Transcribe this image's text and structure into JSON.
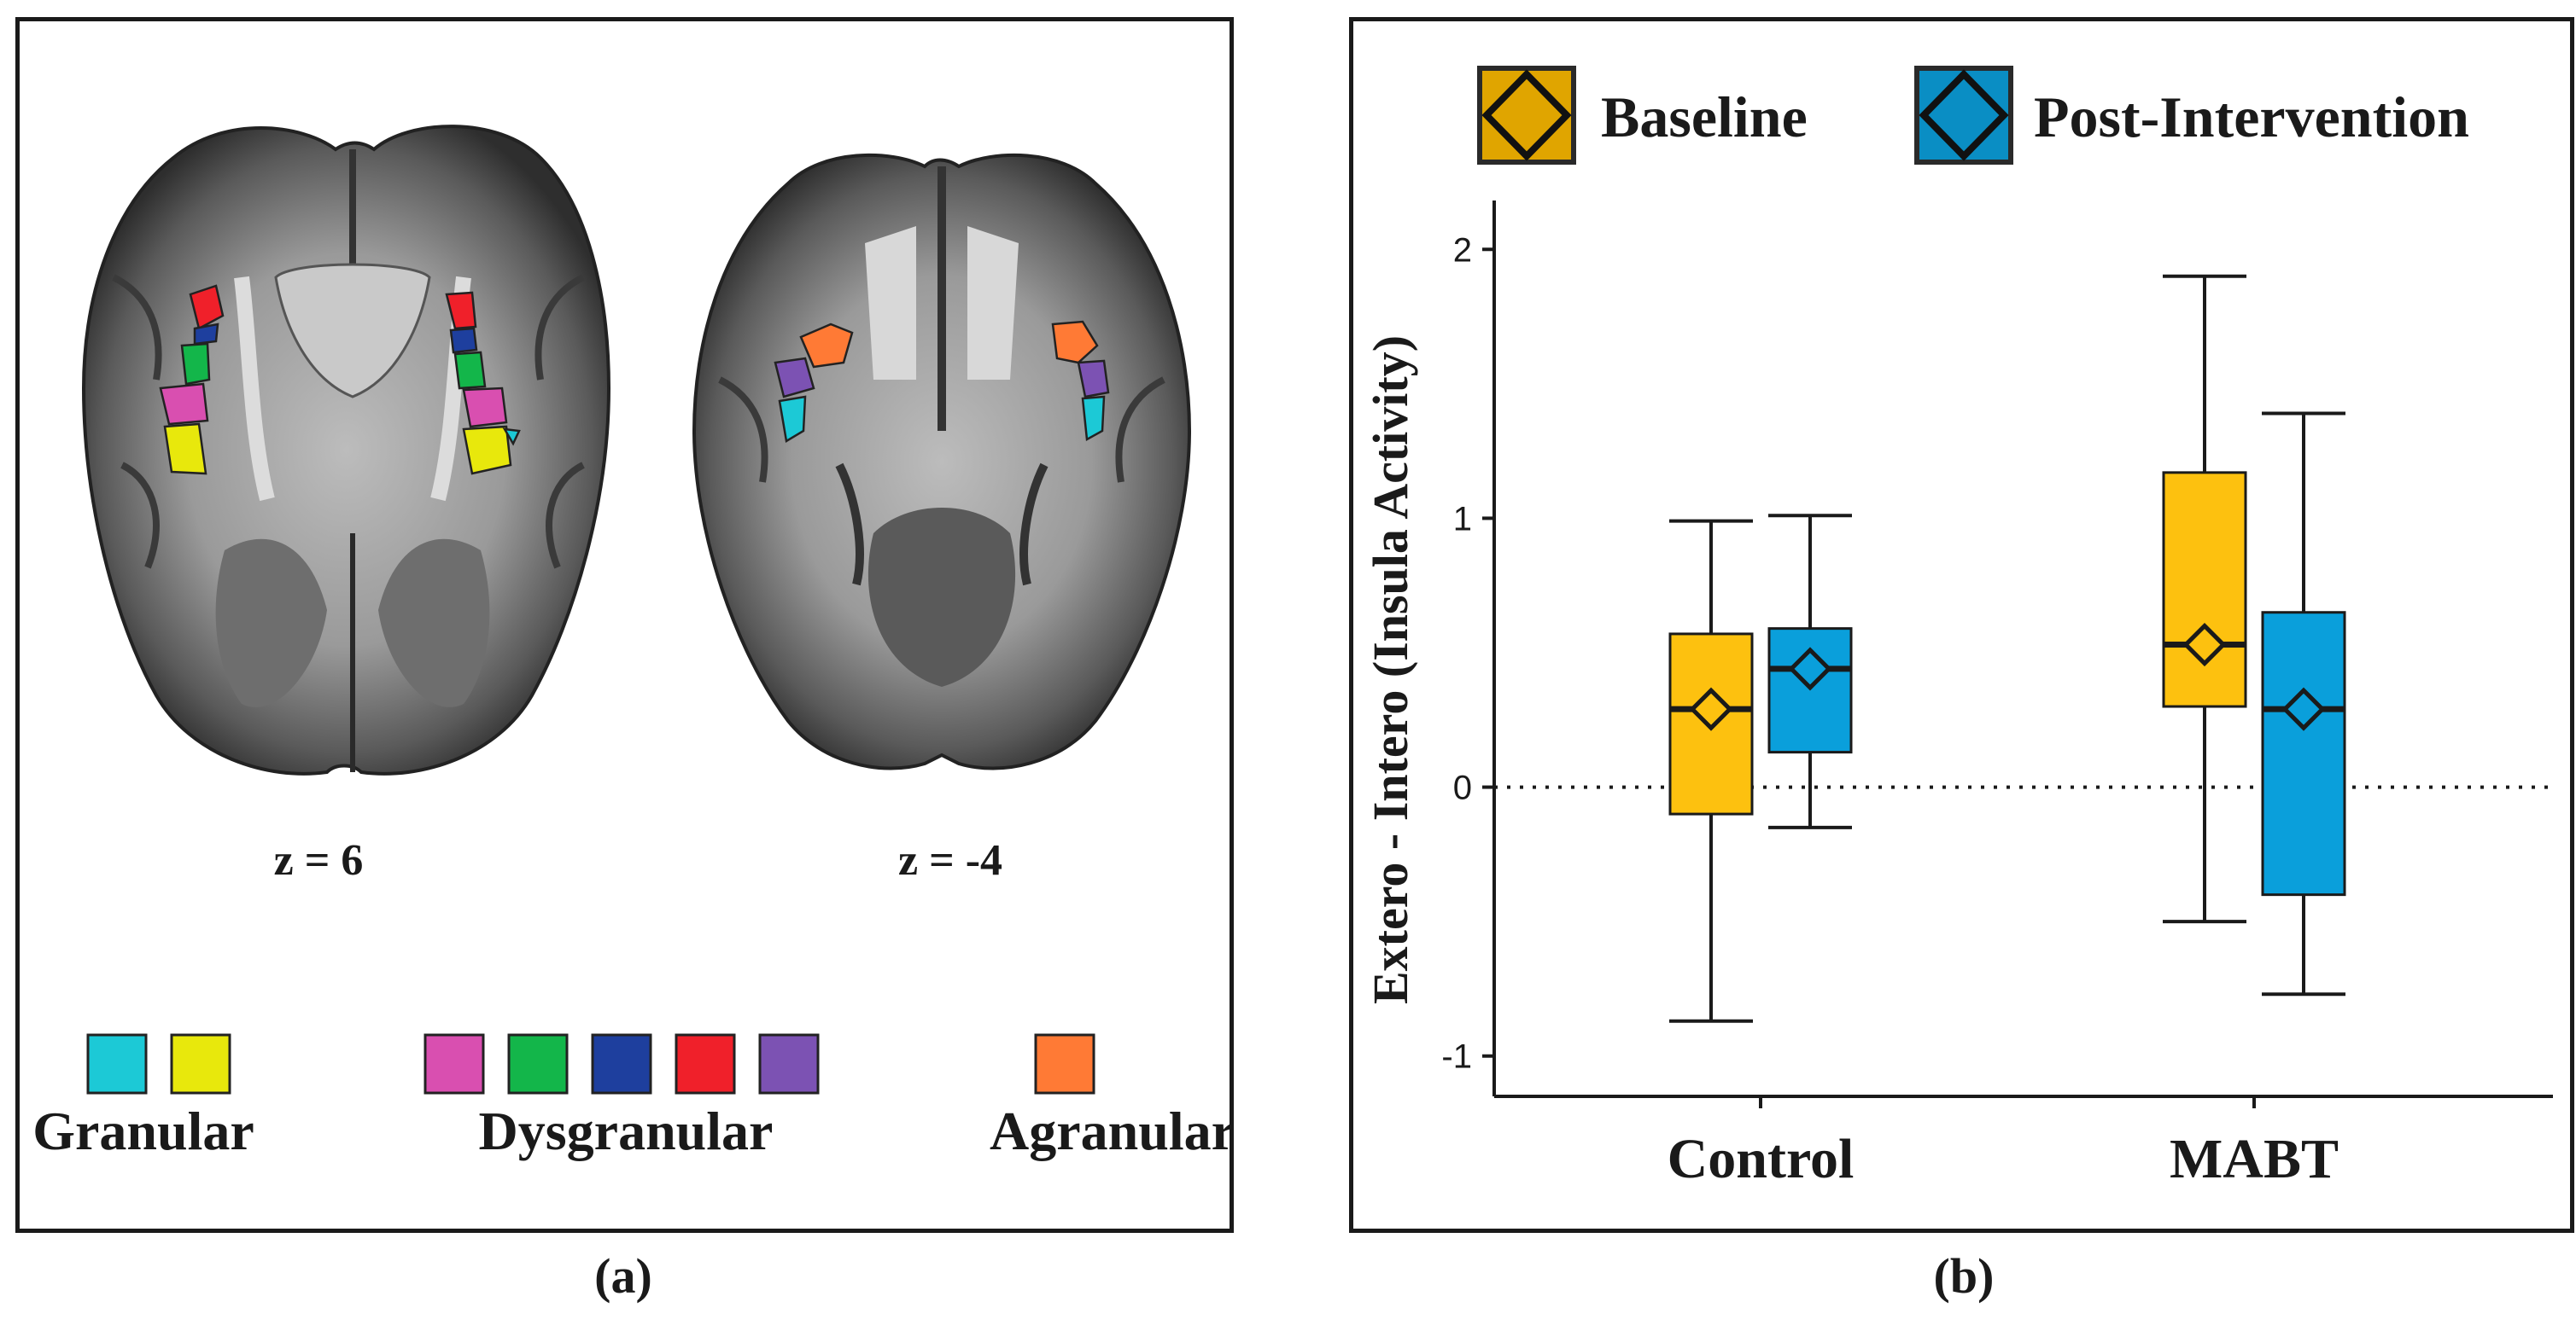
{
  "panel_a": {
    "caption": "(a)",
    "slices": [
      {
        "label": "z = 6"
      },
      {
        "label": "z = -4"
      }
    ],
    "legend": {
      "groups": [
        {
          "name": "Granular",
          "colors": [
            "#1cc9d6",
            "#e8e80c"
          ]
        },
        {
          "name": "Dysgranular",
          "colors": [
            "#d94fb0",
            "#13b64a",
            "#1e3f9e",
            "#f0202a",
            "#7c52b3"
          ]
        },
        {
          "name": "Agranular",
          "colors": [
            "#ff7a35"
          ]
        }
      ]
    }
  },
  "panel_b": {
    "caption": "(b)"
  },
  "chart_data": {
    "type": "box",
    "title": "",
    "xlabel": "",
    "ylabel": "Extero - Intero (Insula Activity)",
    "ylim": [
      -1.15,
      2.15
    ],
    "yticks": [
      -1,
      0,
      1,
      2
    ],
    "categories": [
      "Control",
      "MABT"
    ],
    "reference_line": {
      "y": 0,
      "style": "dotted"
    },
    "legend_position": "top",
    "series": [
      {
        "name": "Baseline",
        "color": "#fdc10f",
        "boxes": [
          {
            "category": "Control",
            "min": -0.87,
            "q1": -0.1,
            "median": 0.29,
            "q3": 0.57,
            "max": 0.99,
            "mean": 0.29
          },
          {
            "category": "MABT",
            "min": -0.5,
            "q1": 0.3,
            "median": 0.53,
            "q3": 1.17,
            "max": 1.9,
            "mean": 0.53
          }
        ]
      },
      {
        "name": "Post-Intervention",
        "color": "#0a9fdb",
        "boxes": [
          {
            "category": "Control",
            "min": -0.15,
            "q1": 0.13,
            "median": 0.44,
            "q3": 0.59,
            "max": 1.01,
            "mean": 0.44
          },
          {
            "category": "MABT",
            "min": -0.77,
            "q1": -0.4,
            "median": 0.29,
            "q3": 0.65,
            "max": 1.39,
            "mean": 0.29
          }
        ]
      }
    ]
  }
}
